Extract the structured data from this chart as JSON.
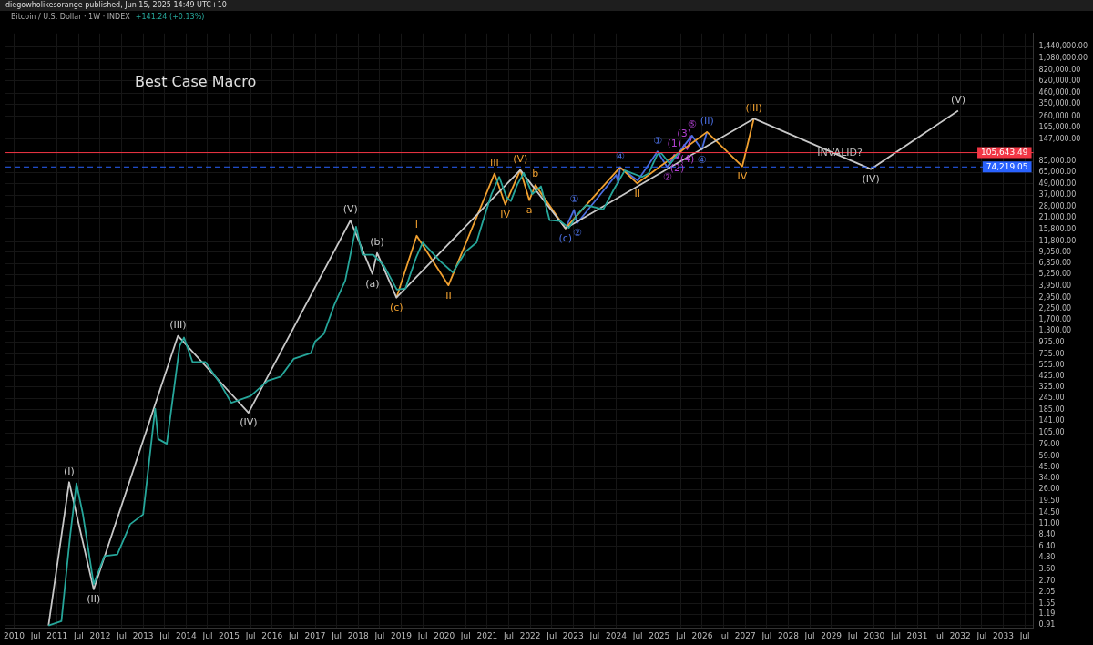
{
  "chart_data": {
    "type": "line",
    "title": "Best Case Macro",
    "subtitle": "Bitcoin / U.S. Dollar · 1W · INDEX",
    "annotations": [
      "diegowholikesorange published, Jun 15, 2025 14:49 UTC+10",
      "+141.24 (+0.13%)",
      {
        "text": "INVALID?",
        "x": 2029.2,
        "y": 74219.05
      },
      {
        "text": "(I)",
        "x": 2011.28,
        "y": 31
      },
      {
        "text": "(II)",
        "x": 2011.85,
        "y": 2.2
      },
      {
        "text": "(III)",
        "x": 2013.81,
        "y": 1150
      },
      {
        "text": "(IV)",
        "x": 2015.45,
        "y": 172
      },
      {
        "text": "(V)",
        "x": 2017.82,
        "y": 19800
      },
      {
        "text": "(a)",
        "x": 2018.33,
        "y": 5300
      },
      {
        "text": "(b)",
        "x": 2018.44,
        "y": 8900
      },
      {
        "text": "(c)",
        "x": 2018.89,
        "y": 2950
      },
      {
        "text": "I",
        "x": 2019.36,
        "y": 13600
      },
      {
        "text": "II",
        "x": 2020.1,
        "y": 4000
      },
      {
        "text": "III",
        "x": 2021.17,
        "y": 63000
      },
      {
        "text": "IV",
        "x": 2021.42,
        "y": 29400
      },
      {
        "text": "(V)",
        "x": 2021.77,
        "y": 68800
      },
      {
        "text": "a",
        "x": 2021.98,
        "y": 32700
      },
      {
        "text": "b",
        "x": 2022.12,
        "y": 47500
      },
      {
        "text": "(c)",
        "x": 2022.82,
        "y": 16300
      },
      {
        "text": "①",
        "x": 2023.02,
        "y": 25700
      },
      {
        "text": "②",
        "x": 2023.09,
        "y": 18500
      },
      {
        "text": "④",
        "x": 2024.09,
        "y": 73500
      },
      {
        "text": "II",
        "x": 2024.49,
        "y": 49500
      },
      {
        "text": "①",
        "x": 2024.96,
        "y": 109000
      },
      {
        "text": "②",
        "x": 2025.19,
        "y": 73500
      },
      {
        "text": "(1)",
        "x": 2025.35,
        "y": 100000
      },
      {
        "text": "(2)",
        "x": 2025.42,
        "y": 92000
      },
      {
        "text": "(3)",
        "x": 2025.58,
        "y": 128000
      },
      {
        "text": "(4)",
        "x": 2025.65,
        "y": 115000
      },
      {
        "text": "⑤",
        "x": 2025.76,
        "y": 161000
      },
      {
        "text": "④",
        "x": 2025.99,
        "y": 114000
      },
      {
        "text": "(II)",
        "x": 2026.11,
        "y": 176000
      },
      {
        "text": "IV",
        "x": 2026.93,
        "y": 75200
      },
      {
        "text": "(III)",
        "x": 2027.2,
        "y": 245000
      },
      {
        "text": "(IV)",
        "x": 2029.92,
        "y": 70300
      },
      {
        "text": "(V)",
        "x": 2031.95,
        "y": 298000
      }
    ],
    "series": [
      {
        "color": "#26a69a",
        "x": [
          2010.8,
          2011.1,
          2011.3,
          2011.45,
          2011.6,
          2011.85,
          2012.1,
          2012.4,
          2012.7,
          2013.0,
          2013.28,
          2013.35,
          2013.55,
          2013.85,
          2013.95,
          2014.15,
          2014.45,
          2014.8,
          2015.05,
          2015.5,
          2015.9,
          2016.2,
          2016.5,
          2016.9,
          2017.0,
          2017.2,
          2017.45,
          2017.7,
          2017.95,
          2018.1,
          2018.35,
          2018.6,
          2018.9,
          2019.1,
          2019.35,
          2019.5,
          2019.9,
          2020.2,
          2020.5,
          2020.75,
          2020.95,
          2021.1,
          2021.28,
          2021.45,
          2021.55,
          2021.7,
          2021.85,
          2022.05,
          2022.25,
          2022.45,
          2022.7,
          2022.9,
          2023.1,
          2023.3,
          2023.7,
          2023.95,
          2024.2,
          2024.6,
          2024.75,
          2024.95,
          2025.05,
          2025.25,
          2025.45
        ],
        "values": [
          0.9,
          1,
          8,
          30,
          14,
          2.5,
          5,
          5.2,
          11,
          14,
          190,
          90,
          80,
          900,
          1100,
          600,
          600,
          350,
          220,
          260,
          380,
          420,
          650,
          750,
          1000,
          1200,
          2500,
          4500,
          17000,
          8500,
          8500,
          6500,
          3600,
          3700,
          8000,
          11500,
          7300,
          5500,
          9200,
          11500,
          23000,
          38000,
          58000,
          35000,
          32000,
          48000,
          64000,
          38000,
          46000,
          20000,
          19500,
          16500,
          23000,
          29000,
          26000,
          43000,
          68000,
          58000,
          63000,
          100000,
          104000,
          80000,
          105643.49
        ]
      },
      {
        "color": "#c8c8c8",
        "x": [
          2010.8,
          2011.28,
          2011.85,
          2013.81,
          2015.45,
          2017.82,
          2018.33,
          2018.44,
          2018.89,
          2021.77,
          2022.82,
          2027.2,
          2029.92,
          2031.95
        ],
        "values": [
          0.9,
          31,
          2.2,
          1150,
          172,
          19800,
          5300,
          8900,
          2950,
          68800,
          16300,
          245000,
          70300,
          298000
        ]
      },
      {
        "color": "#f0a030",
        "x": [
          2018.89,
          2019.36,
          2020.1,
          2021.17,
          2021.42,
          2021.77,
          2021.98,
          2022.12,
          2022.82,
          2024.09,
          2024.49,
          2026.11,
          2026.93,
          2027.2
        ],
        "values": [
          2950,
          13600,
          4000,
          63000,
          29400,
          68800,
          32700,
          47500,
          16300,
          73500,
          49500,
          176000,
          75200,
          245000
        ]
      },
      {
        "color": "#4a6ee0",
        "x": [
          2022.82,
          2023.02,
          2023.09,
          2024.0,
          2024.05,
          2024.09,
          2024.5,
          2024.96,
          2025.19,
          2025.76,
          2025.99,
          2026.11
        ],
        "values": [
          16300,
          25700,
          18500,
          61000,
          50000,
          73500,
          53000,
          109000,
          73500,
          161000,
          114000,
          176000
        ]
      },
      {
        "color": "#b040d0",
        "x": [
          2025.19,
          2025.35,
          2025.42,
          2025.58,
          2025.65,
          2025.76
        ],
        "values": [
          73500,
          100000,
          92000,
          128000,
          115000,
          161000
        ]
      }
    ],
    "ref_lines": [
      {
        "axis": "y",
        "value": 105643.49,
        "label": "105,643.49",
        "color": "#f23645",
        "line_style": "solid"
      },
      {
        "axis": "y",
        "value": 74219.05,
        "label": "74,219.05",
        "color": "#2962ff",
        "line_style": "dashed"
      }
    ],
    "log": "y",
    "grid": true,
    "legend": false,
    "marker": "none",
    "xlim": [
      2009.8,
      2033.7
    ],
    "xticks": [
      {
        "value": 2010,
        "label": "2010"
      },
      {
        "value": 2010.5,
        "label": "Jul"
      },
      {
        "value": 2011,
        "label": "2011"
      },
      {
        "value": 2011.5,
        "label": "Jul"
      },
      {
        "value": 2012,
        "label": "2012"
      },
      {
        "value": 2012.5,
        "label": "Jul"
      },
      {
        "value": 2013,
        "label": "2013"
      },
      {
        "value": 2013.5,
        "label": "Jul"
      },
      {
        "value": 2014,
        "label": "2014"
      },
      {
        "value": 2014.5,
        "label": "Jul"
      },
      {
        "value": 2015,
        "label": "2015"
      },
      {
        "value": 2015.5,
        "label": "Jul"
      },
      {
        "value": 2016,
        "label": "2016"
      },
      {
        "value": 2016.5,
        "label": "Jul"
      },
      {
        "value": 2017,
        "label": "2017"
      },
      {
        "value": 2017.5,
        "label": "Jul"
      },
      {
        "value": 2018,
        "label": "2018"
      },
      {
        "value": 2018.5,
        "label": "Jul"
      },
      {
        "value": 2019,
        "label": "2019"
      },
      {
        "value": 2019.5,
        "label": "Jul"
      },
      {
        "value": 2020,
        "label": "2020"
      },
      {
        "value": 2020.5,
        "label": "Jul"
      },
      {
        "value": 2021,
        "label": "2021"
      },
      {
        "value": 2021.5,
        "label": "Jul"
      },
      {
        "value": 2022,
        "label": "2022"
      },
      {
        "value": 2022.5,
        "label": "Jul"
      },
      {
        "value": 2023,
        "label": "2023"
      },
      {
        "value": 2023.5,
        "label": "Jul"
      },
      {
        "value": 2024,
        "label": "2024"
      },
      {
        "value": 2024.5,
        "label": "Jul"
      },
      {
        "value": 2025,
        "label": "2025"
      },
      {
        "value": 2025.5,
        "label": "Jul"
      },
      {
        "value": 2026,
        "label": "2026"
      },
      {
        "value": 2026.5,
        "label": "Jul"
      },
      {
        "value": 2027,
        "label": "2027"
      },
      {
        "value": 2027.5,
        "label": "Jul"
      },
      {
        "value": 2028,
        "label": "2028"
      },
      {
        "value": 2028.5,
        "label": "Jul"
      },
      {
        "value": 2029,
        "label": "2029"
      },
      {
        "value": 2029.5,
        "label": "Jul"
      },
      {
        "value": 2030,
        "label": "2030"
      },
      {
        "value": 2030.5,
        "label": "Jul"
      },
      {
        "value": 2031,
        "label": "2031"
      },
      {
        "value": 2031.5,
        "label": "Jul"
      },
      {
        "value": 2032,
        "label": "2032"
      },
      {
        "value": 2032.5,
        "label": "Jul"
      },
      {
        "value": 2033,
        "label": "2033"
      },
      {
        "value": 2033.5,
        "label": "Jul"
      }
    ],
    "ylim": [
      0.85,
      2000000
    ],
    "yticks": [
      {
        "value": 0.91,
        "label": "0.91"
      },
      {
        "value": 1.19,
        "label": "1.19"
      },
      {
        "value": 1.55,
        "label": "1.55"
      },
      {
        "value": 2.05,
        "label": "2.05"
      },
      {
        "value": 2.7,
        "label": "2.70"
      },
      {
        "value": 3.6,
        "label": "3.60"
      },
      {
        "value": 4.8,
        "label": "4.80"
      },
      {
        "value": 6.4,
        "label": "6.40"
      },
      {
        "value": 8.4,
        "label": "8.40"
      },
      {
        "value": 11,
        "label": "11.00"
      },
      {
        "value": 14.5,
        "label": "14.50"
      },
      {
        "value": 19.5,
        "label": "19.50"
      },
      {
        "value": 26,
        "label": "26.00"
      },
      {
        "value": 34,
        "label": "34.00"
      },
      {
        "value": 45,
        "label": "45.00"
      },
      {
        "value": 59,
        "label": "59.00"
      },
      {
        "value": 79,
        "label": "79.00"
      },
      {
        "value": 105,
        "label": "105.00"
      },
      {
        "value": 141,
        "label": "141.00"
      },
      {
        "value": 185,
        "label": "185.00"
      },
      {
        "value": 245,
        "label": "245.00"
      },
      {
        "value": 325,
        "label": "325.00"
      },
      {
        "value": 425,
        "label": "425.00"
      },
      {
        "value": 555,
        "label": "555.00"
      },
      {
        "value": 735,
        "label": "735.00"
      },
      {
        "value": 975,
        "label": "975.00"
      },
      {
        "value": 1300,
        "label": "1,300.00"
      },
      {
        "value": 1700,
        "label": "1,700.00"
      },
      {
        "value": 2250,
        "label": "2,250.00"
      },
      {
        "value": 2950,
        "label": "2,950.00"
      },
      {
        "value": 3950,
        "label": "3,950.00"
      },
      {
        "value": 5250,
        "label": "5,250.00"
      },
      {
        "value": 6850,
        "label": "6,850.00"
      },
      {
        "value": 9050,
        "label": "9,050.00"
      },
      {
        "value": 11800,
        "label": "11,800.00"
      },
      {
        "value": 15800,
        "label": "15,800.00"
      },
      {
        "value": 21000,
        "label": "21,000.00"
      },
      {
        "value": 28000,
        "label": "28,000.00"
      },
      {
        "value": 37000,
        "label": "37,000.00"
      },
      {
        "value": 49000,
        "label": "49,000.00"
      },
      {
        "value": 65000,
        "label": "65,000.00"
      },
      {
        "value": 85000,
        "label": "85,000.00"
      },
      {
        "value": 147000,
        "label": "147,000.00"
      },
      {
        "value": 195000,
        "label": "195,000.00"
      },
      {
        "value": 260000,
        "label": "260,000.00"
      },
      {
        "value": 350000,
        "label": "350,000.00"
      },
      {
        "value": 460000,
        "label": "460,000.00"
      },
      {
        "value": 620000,
        "label": "620,000.00"
      },
      {
        "value": 820000,
        "label": "820,000.00"
      },
      {
        "value": 1080000,
        "label": "1,080,000.00"
      },
      {
        "value": 1440000,
        "label": "1,440,000.00"
      }
    ]
  }
}
